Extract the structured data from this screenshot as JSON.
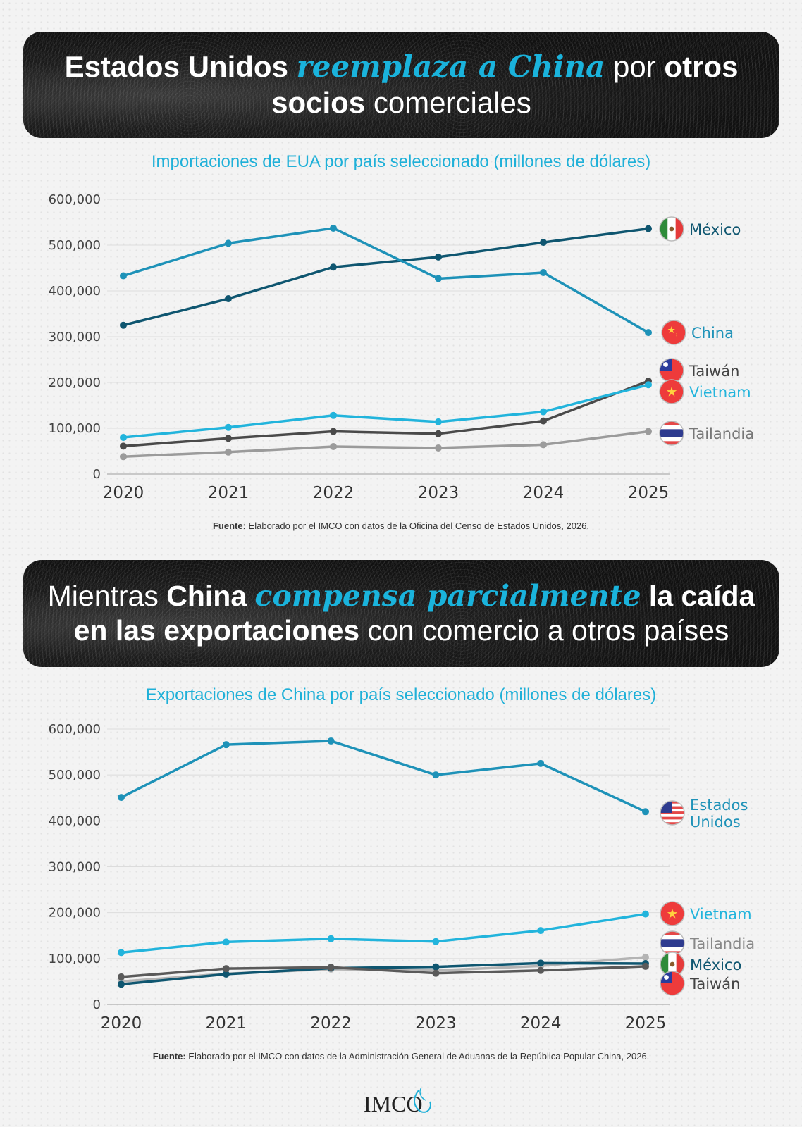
{
  "header1": {
    "parts": [
      {
        "text": "Estados Unidos ",
        "style": "bold"
      },
      {
        "text": "reemplaza a China",
        "style": "highlight"
      },
      {
        "text": " por ",
        "style": "light"
      },
      {
        "text": "otros",
        "style": "bold"
      }
    ],
    "parts2": [
      {
        "text": "socios",
        "style": "bold"
      },
      {
        "text": " comerciales",
        "style": "light"
      }
    ]
  },
  "header2": {
    "parts": [
      {
        "text": "Mientras ",
        "style": "light"
      },
      {
        "text": "China ",
        "style": "bold"
      },
      {
        "text": "compensa parcialmente",
        "style": "highlight"
      },
      {
        "text": " la caída",
        "style": "bold"
      }
    ],
    "parts2": [
      {
        "text": "en las exportaciones",
        "style": "bold"
      },
      {
        "text": " con comercio a otros países",
        "style": "light"
      }
    ]
  },
  "sources": {
    "label": "Fuente:",
    "source1": " Elaborado por el IMCO con datos de la Oficina del Censo de Estados Unidos, 2026.",
    "source2": " Elaborado por el IMCO con datos de la Administración General de Aduanas de la República Popular China, 2026."
  },
  "logo": {
    "text": "IMCO"
  },
  "colors": {
    "accent": "#1fb0d8",
    "mexico": "#0f5670",
    "china_usa": "#1e92b8",
    "vietnam": "#22b4dc",
    "taiwan": "#4a4a4a",
    "tailandia": "#9b9b9b"
  },
  "chart_data": [
    {
      "type": "line",
      "title": "Importaciones de EUA por país seleccionado (millones de dólares)",
      "xlabel": "",
      "ylabel": "",
      "x": [
        "2020",
        "2021",
        "2022",
        "2023",
        "2024",
        "2025"
      ],
      "ylim": [
        0,
        600000
      ],
      "yticks": [
        "0",
        "100,000",
        "200,000",
        "300,000",
        "400,000",
        "500,000",
        "600,000"
      ],
      "grid": true,
      "legend": "right (end labels with flags)",
      "series": [
        {
          "name": "México",
          "flag": "mexico-flag-icon",
          "color": "#0f5670",
          "values": [
            325000,
            383000,
            452000,
            474000,
            506000,
            536000
          ]
        },
        {
          "name": "China",
          "flag": "china-flag-icon",
          "color": "#1e92b8",
          "values": [
            433000,
            504000,
            537000,
            427000,
            440000,
            309000
          ]
        },
        {
          "name": "Taiwán",
          "flag": "taiwan-flag-icon",
          "color": "#4a4a4a",
          "values": [
            61000,
            78000,
            93000,
            88000,
            116000,
            203000
          ]
        },
        {
          "name": "Vietnam",
          "flag": "vietnam-flag-icon",
          "color": "#22b4dc",
          "values": [
            80000,
            102000,
            128000,
            114000,
            136000,
            195000
          ]
        },
        {
          "name": "Tailandia",
          "flag": "thailand-flag-icon",
          "color": "#9b9b9b",
          "values": [
            38000,
            48000,
            60000,
            57000,
            64000,
            93000
          ]
        }
      ]
    },
    {
      "type": "line",
      "title": "Exportaciones de China por país seleccionado (millones de dólares)",
      "xlabel": "",
      "ylabel": "",
      "x": [
        "2020",
        "2021",
        "2022",
        "2023",
        "2024",
        "2025"
      ],
      "ylim": [
        0,
        600000
      ],
      "yticks": [
        "0",
        "100,000",
        "200,000",
        "300,000",
        "400,000",
        "500,000",
        "600,000"
      ],
      "grid": true,
      "legend": "right (end labels with flags)",
      "series": [
        {
          "name": "Estados Unidos",
          "label_lines": [
            "Estados",
            "Unidos"
          ],
          "flag": "usa-flag-icon",
          "color": "#1e92b8",
          "values": [
            451000,
            566000,
            574000,
            500000,
            525000,
            420000
          ]
        },
        {
          "name": "Vietnam",
          "flag": "vietnam-flag-icon",
          "color": "#22b4dc",
          "values": [
            113000,
            136000,
            143000,
            137000,
            161000,
            197000
          ]
        },
        {
          "name": "Tailandia",
          "flag": "thailand-flag-icon",
          "color": "#b4b4b4",
          "values": [
            50000,
            67000,
            77000,
            74000,
            84000,
            103000
          ]
        },
        {
          "name": "México",
          "flag": "mexico-flag-icon",
          "color": "#0f5670",
          "values": [
            44000,
            66000,
            79000,
            82000,
            90000,
            89000
          ]
        },
        {
          "name": "Taiwán",
          "flag": "taiwan-flag-icon",
          "color": "#5a5a5a",
          "values": [
            60000,
            78000,
            81000,
            68000,
            74000,
            83000
          ]
        }
      ]
    }
  ]
}
